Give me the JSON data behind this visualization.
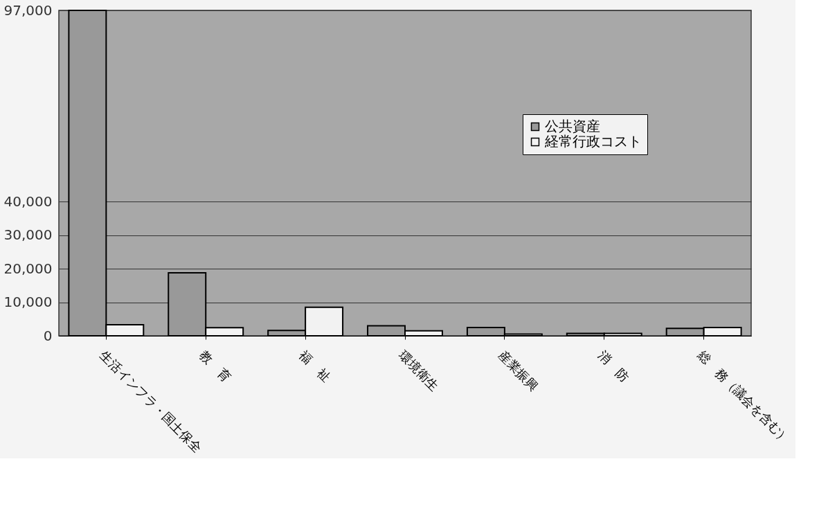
{
  "chart_data": {
    "type": "bar",
    "categories": [
      "生活インフラ・国土保全",
      "教　育",
      "福　祉",
      "環境衛生",
      "産業振興",
      "消　防",
      "総　務（議会を含む）"
    ],
    "series": [
      {
        "name": "公共資産",
        "color": "#999999",
        "values": [
          97000,
          18800,
          1600,
          3000,
          2500,
          700,
          2200
        ]
      },
      {
        "name": "経常行政コスト",
        "color": "#f2f2f2",
        "values": [
          3300,
          2400,
          8500,
          1500,
          500,
          700,
          2500
        ]
      }
    ],
    "ylim": [
      0,
      97000
    ],
    "yticks": [
      0,
      {
        "value": 10000,
        "label": "10,000"
      },
      {
        "value": 20000,
        "label": "20,000"
      },
      {
        "value": 30000,
        "label": "30,000"
      },
      {
        "value": 40000,
        "label": "40,000"
      },
      {
        "value": 97000,
        "label": "97,000"
      }
    ],
    "grid": "y",
    "legend": "top right"
  }
}
